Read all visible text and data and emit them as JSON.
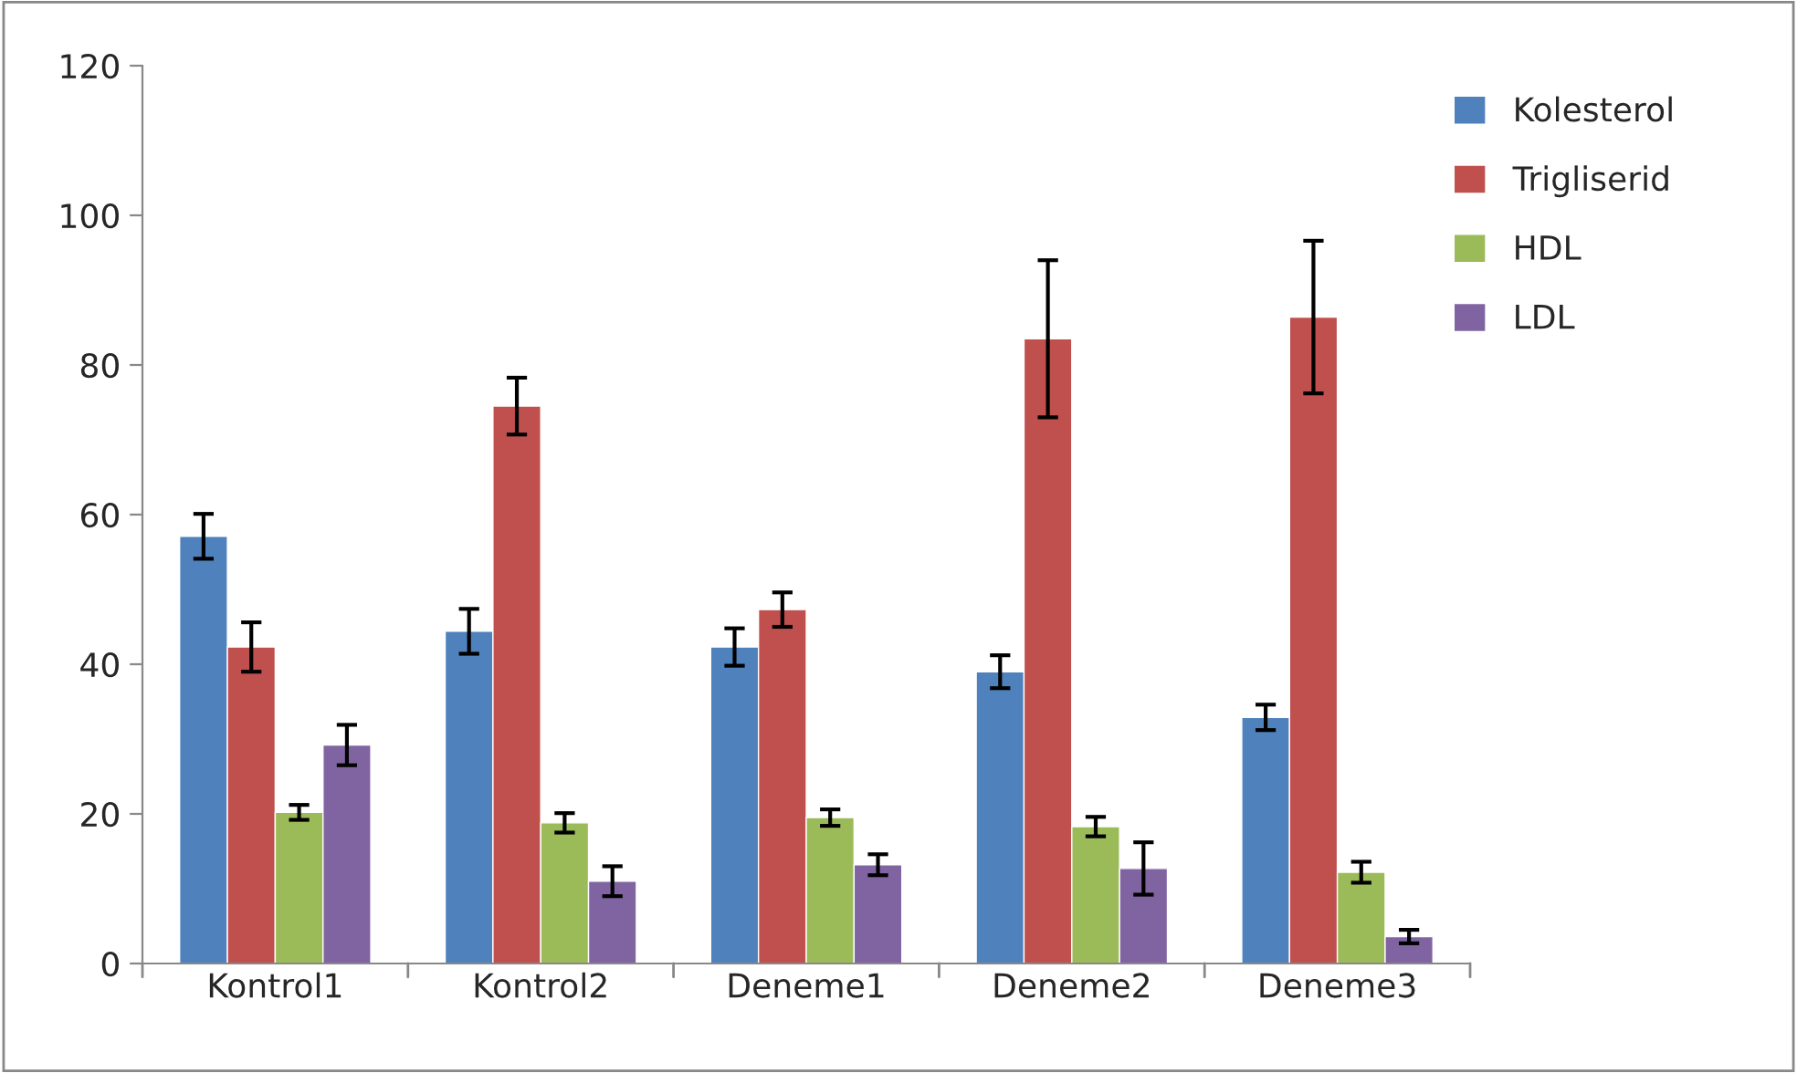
{
  "chart_data": {
    "type": "bar",
    "categories": [
      "Kontrol1",
      "Kontrol2",
      "Deneme1",
      "Deneme2",
      "Deneme3"
    ],
    "series": [
      {
        "name": "Kolesterol",
        "color": "#4f81bd",
        "values": [
          57.1,
          44.4,
          42.3,
          39.0,
          32.9
        ],
        "errors": [
          3.0,
          3.0,
          2.5,
          2.2,
          1.7
        ]
      },
      {
        "name": "Trigliserid",
        "color": "#c0504d",
        "values": [
          42.3,
          74.5,
          47.3,
          83.5,
          86.4
        ],
        "errors": [
          3.3,
          3.8,
          2.3,
          10.5,
          10.2
        ]
      },
      {
        "name": "HDL",
        "color": "#9bbb59",
        "values": [
          20.2,
          18.8,
          19.5,
          18.3,
          12.2
        ],
        "errors": [
          1.0,
          1.3,
          1.1,
          1.3,
          1.4
        ]
      },
      {
        "name": "LDL",
        "color": "#8064a2",
        "values": [
          29.2,
          11.0,
          13.2,
          12.7,
          3.6
        ],
        "errors": [
          2.7,
          2.0,
          1.4,
          3.5,
          0.9
        ]
      }
    ],
    "ylim": [
      0,
      120
    ],
    "yticks": [
      0,
      20,
      40,
      60,
      80,
      100,
      120
    ],
    "legend": "top right"
  }
}
